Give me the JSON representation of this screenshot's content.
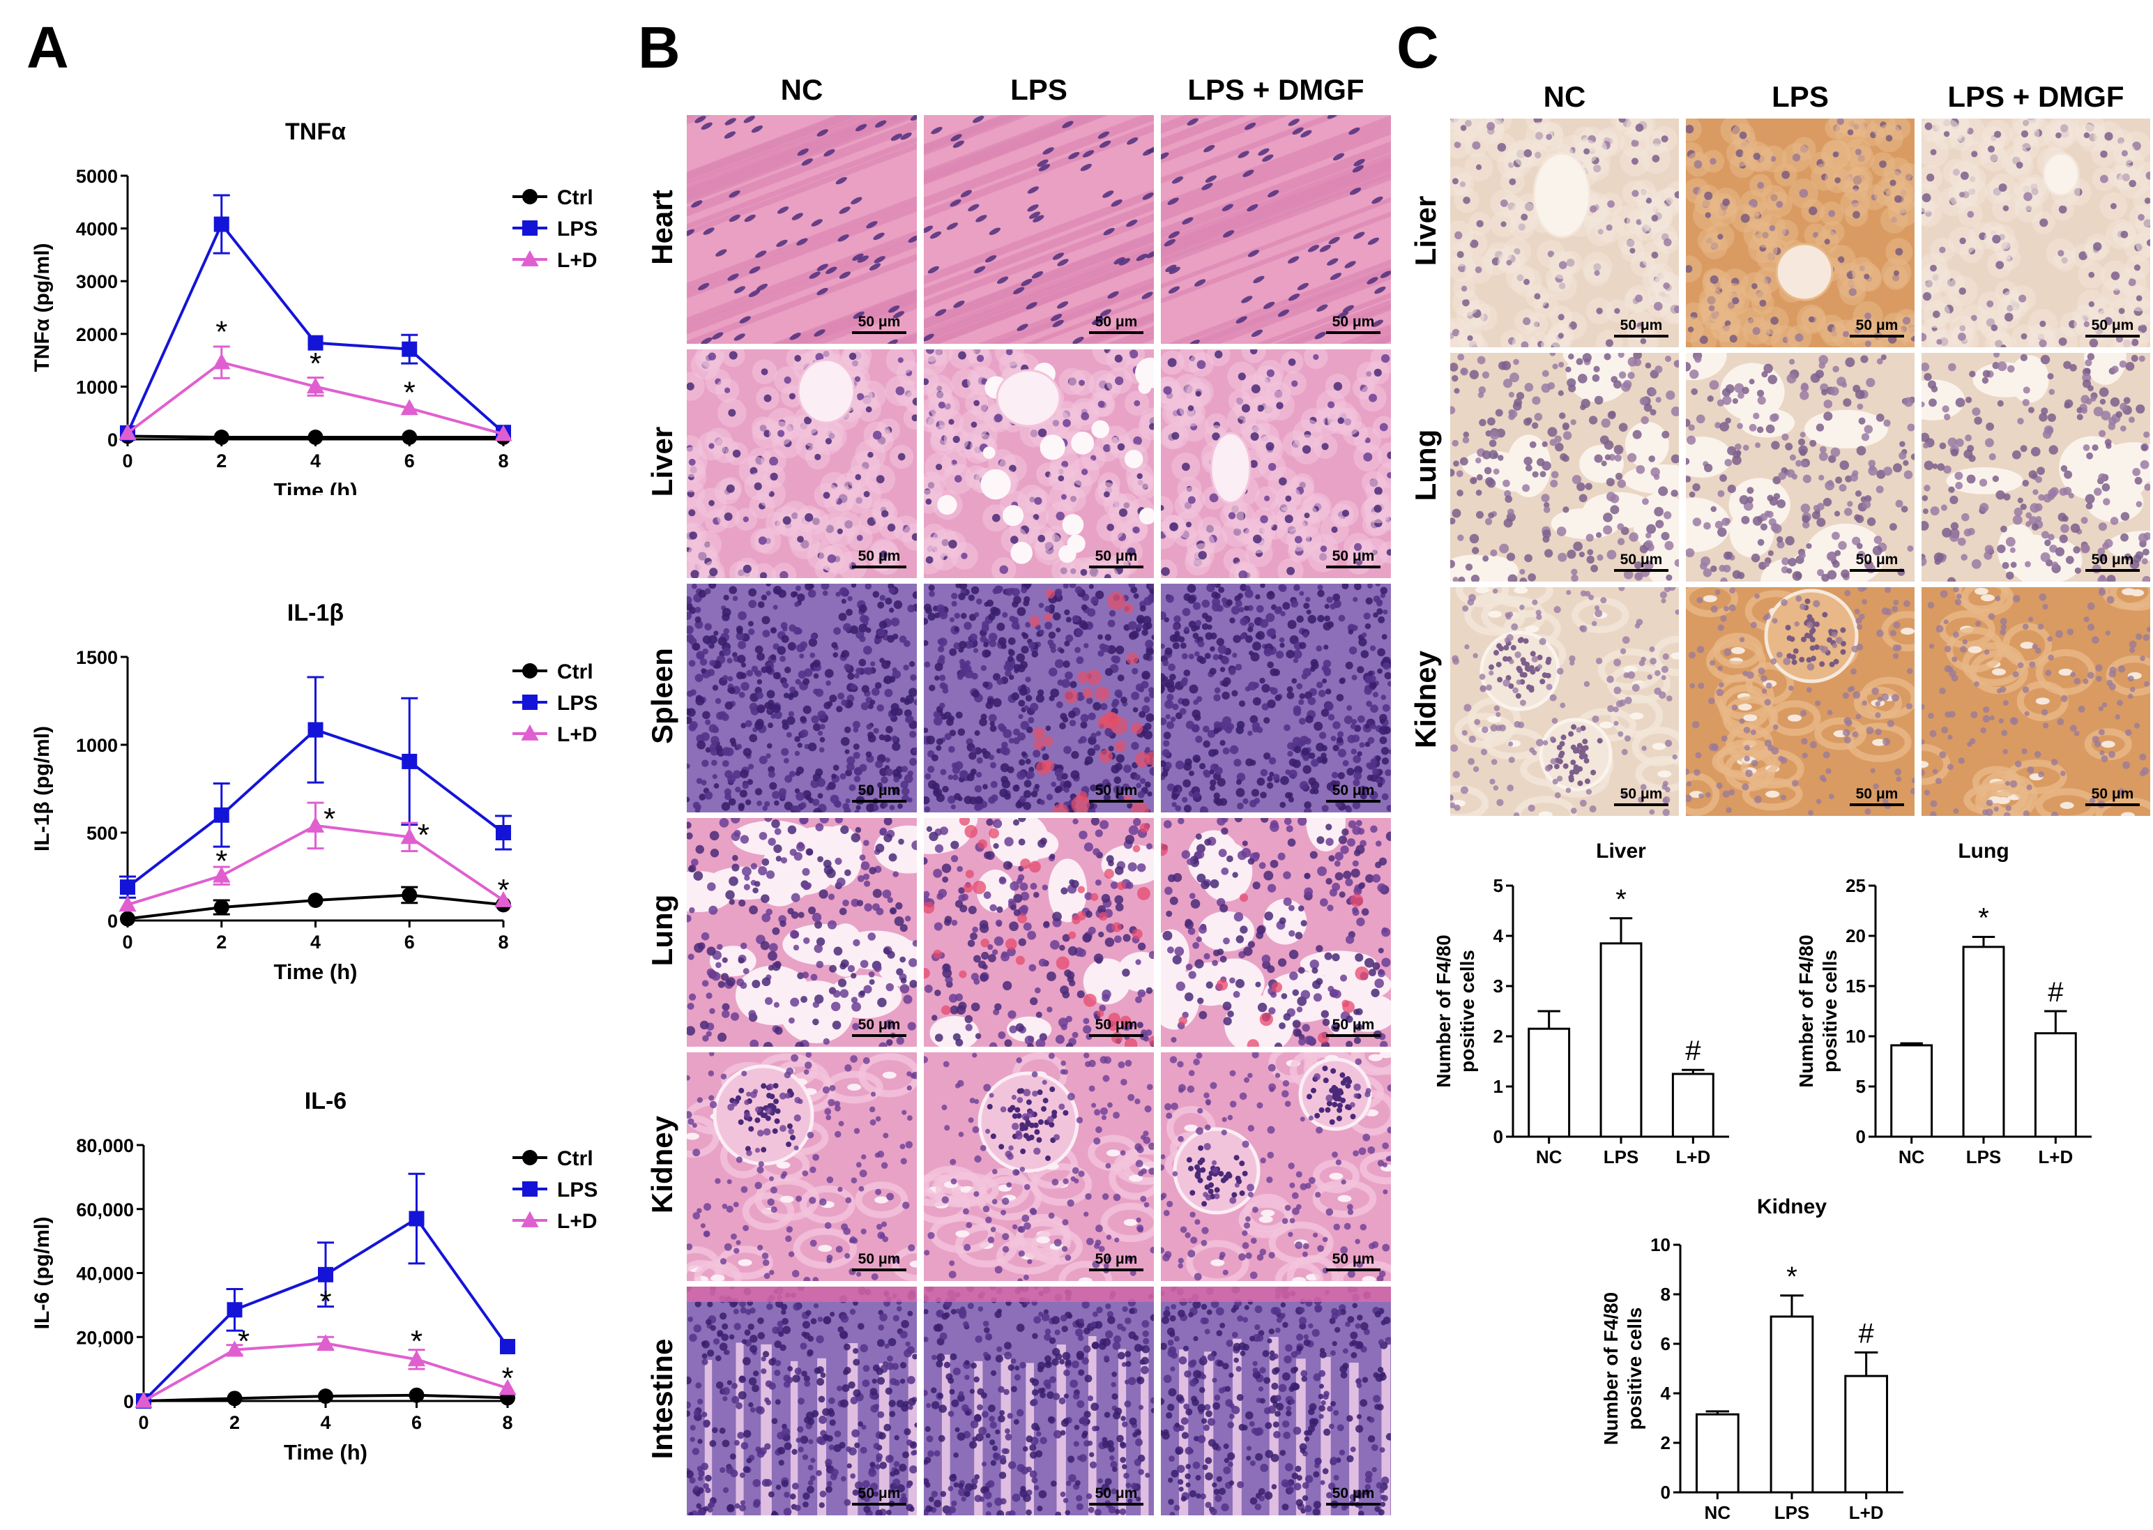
{
  "panel_letters": {
    "a": "A",
    "b": "B",
    "c": "C"
  },
  "histology_b": {
    "columns": [
      "NC",
      "LPS",
      "LPS + DMGF"
    ],
    "rows": [
      "Heart",
      "Liver",
      "Spleen",
      "Lung",
      "Kidney",
      "Intestine"
    ],
    "scale_bar": "50 μm"
  },
  "histology_c": {
    "columns": [
      "NC",
      "LPS",
      "LPS + DMGF"
    ],
    "rows": [
      "Liver",
      "Lung",
      "Kidney"
    ],
    "scale_bar": "50 μm"
  },
  "chart_data": [
    {
      "type": "line",
      "title": "TNFα",
      "xlabel": "Time (h)",
      "ylabel": "TNFα (pg/ml)",
      "x": [
        0,
        2,
        4,
        6,
        8
      ],
      "xticks": [
        "0",
        "2",
        "4",
        "6",
        "8"
      ],
      "xlim": [
        0,
        8
      ],
      "ylim": [
        0,
        5000
      ],
      "yticks": [
        0,
        1000,
        2000,
        3000,
        4000,
        5000
      ],
      "ytick_labels": [
        "0",
        "1000",
        "2000",
        "3000",
        "4000",
        "5000"
      ],
      "legend": "right",
      "series": [
        {
          "name": "Ctrl",
          "color": "#000000",
          "marker": "circle",
          "values": [
            60,
            40,
            40,
            40,
            40
          ],
          "errors": [
            0,
            0,
            0,
            0,
            0
          ]
        },
        {
          "name": "LPS",
          "color": "#1414d8",
          "marker": "square",
          "values": [
            120,
            4080,
            1830,
            1710,
            130
          ],
          "errors": [
            0,
            550,
            0,
            270,
            0
          ]
        },
        {
          "name": "L+D",
          "color": "#e05fd0",
          "marker": "triangle",
          "values": [
            120,
            1460,
            1000,
            590,
            100
          ],
          "errors": [
            0,
            300,
            170,
            0,
            0
          ]
        }
      ],
      "annotations": [
        {
          "x": 2,
          "y": 2030,
          "text": "*"
        },
        {
          "x": 4,
          "y": 1430,
          "text": "*"
        },
        {
          "x": 6,
          "y": 880,
          "text": "*"
        }
      ]
    },
    {
      "type": "line",
      "title": "IL-1β",
      "xlabel": "Time (h)",
      "ylabel": "IL-1β (pg/ml)",
      "x": [
        0,
        2,
        4,
        6,
        8
      ],
      "xticks": [
        "0",
        "2",
        "4",
        "6",
        "8"
      ],
      "xlim": [
        0,
        8
      ],
      "ylim": [
        0,
        1500
      ],
      "yticks": [
        0,
        500,
        1000,
        1500
      ],
      "ytick_labels": [
        "0",
        "500",
        "1000",
        "1500"
      ],
      "legend": "right",
      "series": [
        {
          "name": "Ctrl",
          "color": "#000000",
          "marker": "circle",
          "values": [
            10,
            75,
            115,
            145,
            90
          ],
          "errors": [
            0,
            40,
            0,
            45,
            0
          ]
        },
        {
          "name": "LPS",
          "color": "#1414d8",
          "marker": "square",
          "values": [
            190,
            600,
            1085,
            905,
            500
          ],
          "errors": [
            60,
            180,
            300,
            360,
            95
          ]
        },
        {
          "name": "L+D",
          "color": "#e05fd0",
          "marker": "triangle",
          "values": [
            90,
            255,
            540,
            475,
            115
          ],
          "errors": [
            0,
            50,
            130,
            80,
            0
          ]
        }
      ],
      "annotations": [
        {
          "x": 2,
          "y": 335,
          "text": "*"
        },
        {
          "x": 4.3,
          "y": 575,
          "text": "*"
        },
        {
          "x": 6.3,
          "y": 485,
          "text": "*"
        },
        {
          "x": 8,
          "y": 170,
          "text": "*"
        }
      ]
    },
    {
      "type": "line",
      "title": "IL-6",
      "xlabel": "Time (h)",
      "ylabel": "IL-6 (pg/ml)",
      "x": [
        0,
        2,
        4,
        6,
        8
      ],
      "xticks": [
        "0",
        "2",
        "4",
        "6",
        "8"
      ],
      "xlim": [
        0,
        8
      ],
      "ylim": [
        0,
        80000
      ],
      "yticks": [
        0,
        20000,
        40000,
        60000,
        80000
      ],
      "ytick_labels": [
        "0",
        "20,000",
        "40,000",
        "60,000",
        "80,000"
      ],
      "legend": "right",
      "series": [
        {
          "name": "Ctrl",
          "color": "#000000",
          "marker": "circle",
          "values": [
            0,
            800,
            1500,
            1800,
            1000
          ],
          "errors": [
            0,
            0,
            0,
            0,
            0
          ]
        },
        {
          "name": "LPS",
          "color": "#1414d8",
          "marker": "square",
          "values": [
            0,
            28500,
            39500,
            57000,
            17000
          ],
          "errors": [
            0,
            6500,
            10000,
            14000,
            0
          ]
        },
        {
          "name": "L+D",
          "color": "#e05fd0",
          "marker": "triangle",
          "values": [
            0,
            16000,
            18000,
            13000,
            4000
          ],
          "errors": [
            0,
            1500,
            2000,
            3000,
            0
          ]
        }
      ],
      "annotations": [
        {
          "x": 2.2,
          "y": 18500,
          "text": "*"
        },
        {
          "x": 4,
          "y": 31000,
          "text": "*"
        },
        {
          "x": 6,
          "y": 18500,
          "text": "*"
        },
        {
          "x": 8,
          "y": 7000,
          "text": "*"
        }
      ]
    },
    {
      "type": "bar",
      "title": "Liver",
      "xlabel": "",
      "ylabel": "Number of F4/80 positive cells",
      "categories": [
        "NC",
        "LPS",
        "L+D"
      ],
      "values": [
        2.15,
        3.85,
        1.25
      ],
      "errors": [
        0.35,
        0.5,
        0.08
      ],
      "ylim": [
        0,
        5
      ],
      "yticks": [
        0,
        1,
        2,
        3,
        4,
        5
      ],
      "ytick_labels": [
        "0",
        "1",
        "2",
        "3",
        "4",
        "5"
      ],
      "annotations": [
        "",
        "*",
        "#"
      ]
    },
    {
      "type": "bar",
      "title": "Lung",
      "xlabel": "",
      "ylabel": "Number of F4/80 positive cells",
      "categories": [
        "NC",
        "LPS",
        "L+D"
      ],
      "values": [
        9.1,
        18.9,
        10.3
      ],
      "errors": [
        0.2,
        1.0,
        2.2
      ],
      "ylim": [
        0,
        25
      ],
      "yticks": [
        0,
        5,
        10,
        15,
        20,
        25
      ],
      "ytick_labels": [
        "0",
        "5",
        "10",
        "15",
        "20",
        "25"
      ],
      "annotations": [
        "",
        "*",
        "#"
      ]
    },
    {
      "type": "bar",
      "title": "Kidney",
      "xlabel": "",
      "ylabel": "Number of F4/80 positive cells",
      "categories": [
        "NC",
        "LPS",
        "L+D"
      ],
      "values": [
        3.15,
        7.1,
        4.7
      ],
      "errors": [
        0.12,
        0.85,
        0.95
      ],
      "ylim": [
        0,
        10
      ],
      "yticks": [
        0,
        2,
        4,
        6,
        8,
        10
      ],
      "ytick_labels": [
        "0",
        "2",
        "4",
        "6",
        "8",
        "10"
      ],
      "annotations": [
        "",
        "*",
        "#"
      ]
    }
  ],
  "colors": {
    "ctrl": "#000000",
    "lps": "#1414d8",
    "ld": "#e05fd0"
  }
}
